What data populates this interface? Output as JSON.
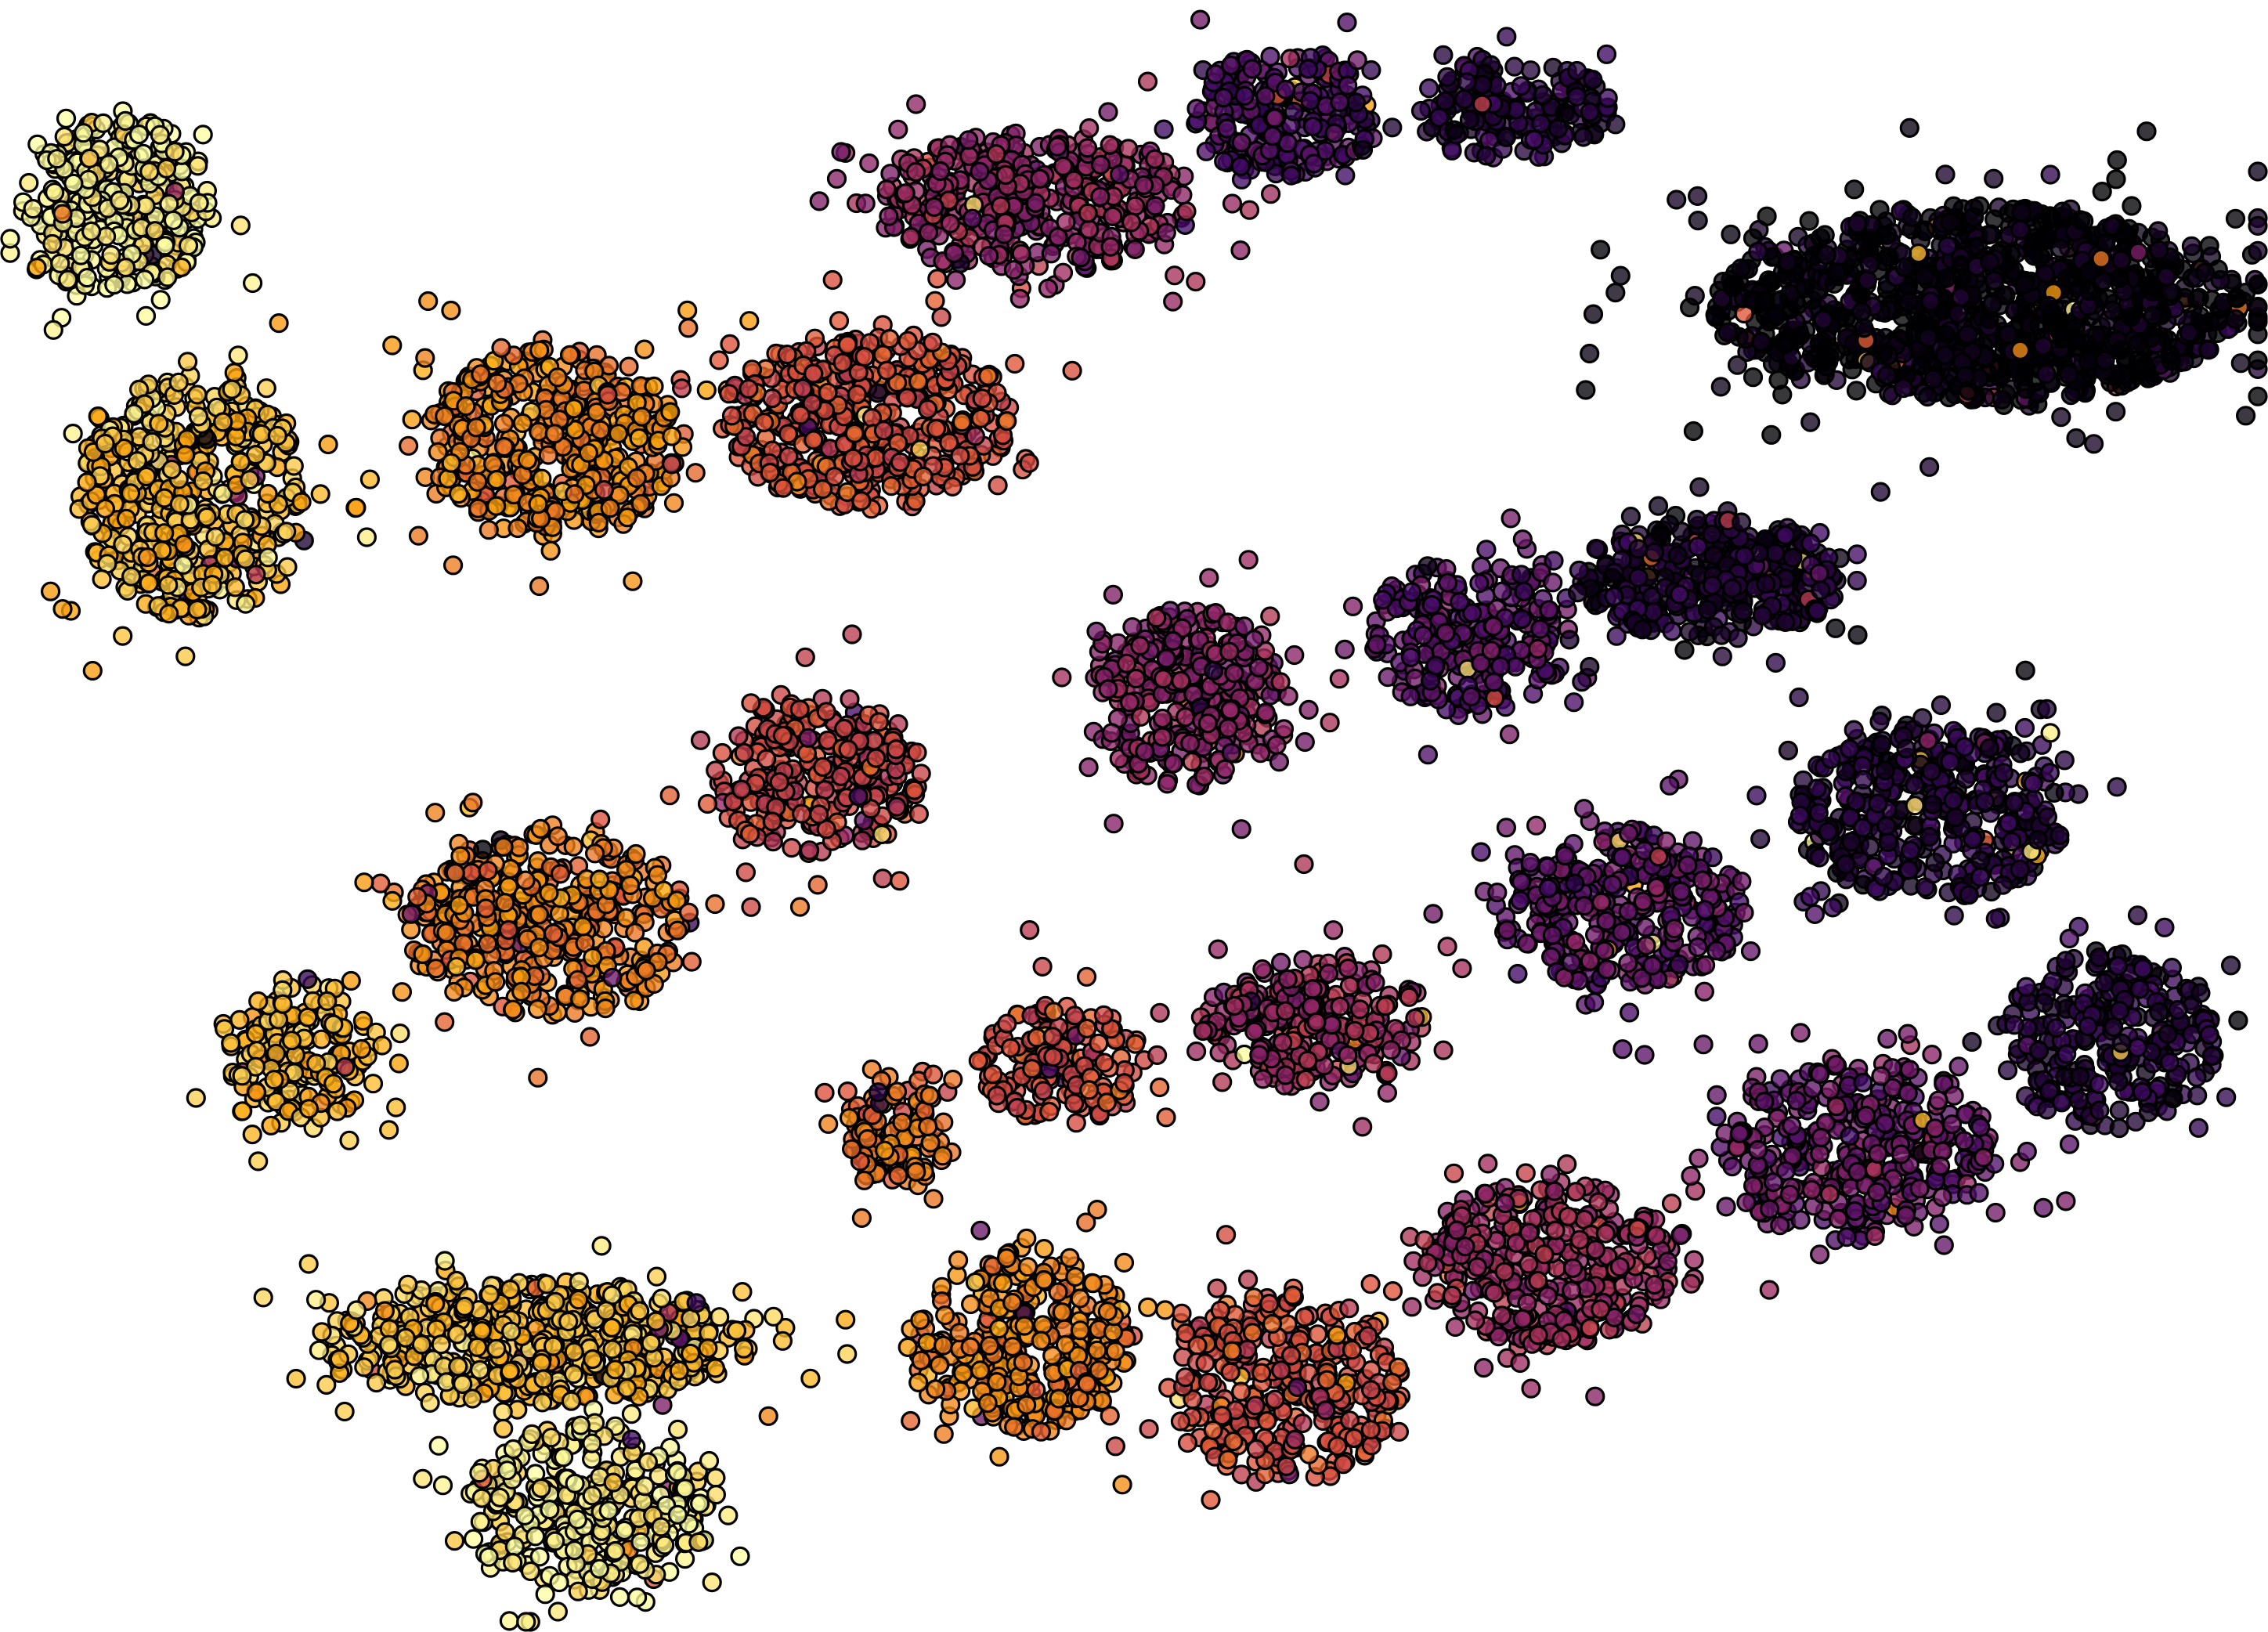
{
  "chart_data": {
    "type": "scatter",
    "title": "",
    "xlabel": "",
    "ylabel": "",
    "xlim": [
      0,
      100
    ],
    "ylim": [
      0,
      72
    ],
    "grid": false,
    "legend": "none",
    "axes_visible": false,
    "colormap": "inferno",
    "colormap_stops": [
      "#000004",
      "#420a68",
      "#932667",
      "#dd513a",
      "#fca50a",
      "#fcffa4"
    ],
    "series": [
      {
        "cx": 5.1,
        "cy": 62.9,
        "sx": 2.6,
        "sy": 2.5,
        "value": 0.98,
        "n": 340
      },
      {
        "cx": 8.4,
        "cy": 50.0,
        "sx": 3.1,
        "sy": 3.4,
        "value": 0.86,
        "n": 480
      },
      {
        "cx": 24.4,
        "cy": 52.5,
        "sx": 3.5,
        "sy": 2.6,
        "value": 0.73,
        "n": 460
      },
      {
        "cx": 38.2,
        "cy": 53.5,
        "sx": 4.0,
        "sy": 2.4,
        "value": 0.6,
        "n": 470
      },
      {
        "cx": 45.6,
        "cy": 63.0,
        "sx": 4.4,
        "sy": 2.0,
        "value": 0.4,
        "n": 420
      },
      {
        "cx": 56.6,
        "cy": 67.0,
        "sx": 2.5,
        "sy": 1.9,
        "value": 0.22,
        "n": 230
      },
      {
        "cx": 66.7,
        "cy": 67.2,
        "sx": 2.7,
        "sy": 1.4,
        "value": 0.12,
        "n": 170
      },
      {
        "cx": 87.2,
        "cy": 58.6,
        "sx": 7.3,
        "sy": 2.7,
        "value": 0.02,
        "n": 1150
      },
      {
        "cx": 52.5,
        "cy": 41.2,
        "sx": 2.8,
        "sy": 2.5,
        "value": 0.38,
        "n": 320
      },
      {
        "cx": 65.0,
        "cy": 44.0,
        "sx": 2.9,
        "sy": 2.2,
        "value": 0.26,
        "n": 270
      },
      {
        "cx": 75.5,
        "cy": 46.5,
        "sx": 3.6,
        "sy": 1.7,
        "value": 0.1,
        "n": 380
      },
      {
        "cx": 85.2,
        "cy": 36.2,
        "sx": 3.8,
        "sy": 2.4,
        "value": 0.12,
        "n": 420
      },
      {
        "cx": 36.0,
        "cy": 37.8,
        "sx": 2.9,
        "sy": 2.2,
        "value": 0.55,
        "n": 290
      },
      {
        "cx": 24.2,
        "cy": 31.2,
        "sx": 3.9,
        "sy": 2.5,
        "value": 0.71,
        "n": 420
      },
      {
        "cx": 13.2,
        "cy": 25.5,
        "sx": 2.0,
        "sy": 2.1,
        "value": 0.84,
        "n": 170
      },
      {
        "cx": 71.5,
        "cy": 32.0,
        "sx": 3.5,
        "sy": 2.2,
        "value": 0.28,
        "n": 340
      },
      {
        "cx": 58.0,
        "cy": 26.8,
        "sx": 3.2,
        "sy": 1.8,
        "value": 0.42,
        "n": 270
      },
      {
        "cx": 46.8,
        "cy": 25.0,
        "sx": 2.3,
        "sy": 1.7,
        "value": 0.58,
        "n": 160
      },
      {
        "cx": 39.5,
        "cy": 22.2,
        "sx": 1.6,
        "sy": 1.5,
        "value": 0.68,
        "n": 110
      },
      {
        "cx": 93.0,
        "cy": 26.2,
        "sx": 3.0,
        "sy": 2.5,
        "value": 0.12,
        "n": 280
      },
      {
        "cx": 82.0,
        "cy": 21.2,
        "sx": 3.8,
        "sy": 2.5,
        "value": 0.3,
        "n": 380
      },
      {
        "cx": 68.2,
        "cy": 16.3,
        "sx": 3.5,
        "sy": 2.3,
        "value": 0.42,
        "n": 370
      },
      {
        "cx": 56.6,
        "cy": 10.8,
        "sx": 3.3,
        "sy": 2.6,
        "value": 0.58,
        "n": 330
      },
      {
        "cx": 45.0,
        "cy": 12.8,
        "sx": 3.0,
        "sy": 2.6,
        "value": 0.73,
        "n": 320
      },
      {
        "cx": 23.5,
        "cy": 12.8,
        "sx": 6.0,
        "sy": 1.7,
        "value": 0.86,
        "n": 520
      },
      {
        "cx": 26.0,
        "cy": 5.5,
        "sx": 3.5,
        "sy": 2.3,
        "value": 0.96,
        "n": 330
      }
    ]
  }
}
